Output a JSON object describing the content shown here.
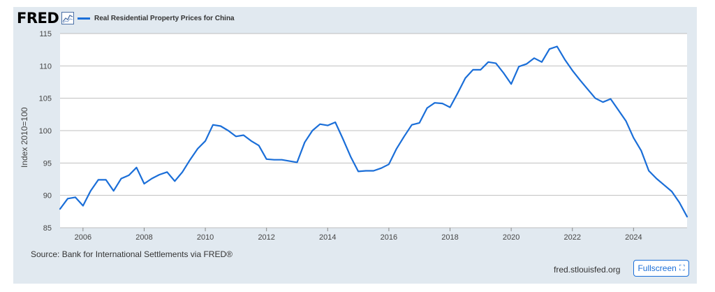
{
  "header": {
    "logo_text": "FRED",
    "logo_graph_icon": "line-graph-icon"
  },
  "chart_data": {
    "type": "line",
    "title": "",
    "xlabel": "",
    "ylabel": "Index 2010=100",
    "ylim": [
      85,
      115
    ],
    "xlim": [
      2005.25,
      2025.75
    ],
    "grid": true,
    "legend_position": "top-left",
    "y_ticks": [
      "85",
      "90",
      "95",
      "100",
      "105",
      "110",
      "115"
    ],
    "x_ticks": [
      "2006",
      "2008",
      "2010",
      "2012",
      "2014",
      "2016",
      "2018",
      "2020",
      "2022",
      "2024"
    ],
    "series": [
      {
        "name": "Real Residential Property Prices for China",
        "color": "#1a6ed8",
        "points": [
          [
            2005.25,
            87.9
          ],
          [
            2005.5,
            89.5
          ],
          [
            2005.75,
            89.7
          ],
          [
            2006.0,
            88.4
          ],
          [
            2006.25,
            90.7
          ],
          [
            2006.5,
            92.4
          ],
          [
            2006.75,
            92.4
          ],
          [
            2007.0,
            90.7
          ],
          [
            2007.25,
            92.6
          ],
          [
            2007.5,
            93.1
          ],
          [
            2007.75,
            94.3
          ],
          [
            2008.0,
            91.8
          ],
          [
            2008.25,
            92.6
          ],
          [
            2008.5,
            93.2
          ],
          [
            2008.75,
            93.6
          ],
          [
            2009.0,
            92.2
          ],
          [
            2009.25,
            93.6
          ],
          [
            2009.5,
            95.5
          ],
          [
            2009.75,
            97.2
          ],
          [
            2010.0,
            98.4
          ],
          [
            2010.25,
            100.9
          ],
          [
            2010.5,
            100.7
          ],
          [
            2010.75,
            100.0
          ],
          [
            2011.0,
            99.1
          ],
          [
            2011.25,
            99.3
          ],
          [
            2011.5,
            98.4
          ],
          [
            2011.75,
            97.7
          ],
          [
            2012.0,
            95.6
          ],
          [
            2012.25,
            95.5
          ],
          [
            2012.5,
            95.5
          ],
          [
            2012.75,
            95.3
          ],
          [
            2013.0,
            95.1
          ],
          [
            2013.25,
            98.2
          ],
          [
            2013.5,
            100.0
          ],
          [
            2013.75,
            101.0
          ],
          [
            2014.0,
            100.8
          ],
          [
            2014.25,
            101.3
          ],
          [
            2014.5,
            98.7
          ],
          [
            2014.75,
            96.0
          ],
          [
            2015.0,
            93.7
          ],
          [
            2015.25,
            93.8
          ],
          [
            2015.5,
            93.8
          ],
          [
            2015.75,
            94.2
          ],
          [
            2016.0,
            94.8
          ],
          [
            2016.25,
            97.2
          ],
          [
            2016.5,
            99.1
          ],
          [
            2016.75,
            100.9
          ],
          [
            2017.0,
            101.2
          ],
          [
            2017.25,
            103.5
          ],
          [
            2017.5,
            104.3
          ],
          [
            2017.75,
            104.2
          ],
          [
            2018.0,
            103.6
          ],
          [
            2018.25,
            105.8
          ],
          [
            2018.5,
            108.1
          ],
          [
            2018.75,
            109.4
          ],
          [
            2019.0,
            109.4
          ],
          [
            2019.25,
            110.6
          ],
          [
            2019.5,
            110.4
          ],
          [
            2019.75,
            108.9
          ],
          [
            2020.0,
            107.2
          ],
          [
            2020.25,
            109.9
          ],
          [
            2020.5,
            110.3
          ],
          [
            2020.75,
            111.2
          ],
          [
            2021.0,
            110.6
          ],
          [
            2021.25,
            112.6
          ],
          [
            2021.5,
            113.0
          ],
          [
            2021.75,
            111.0
          ],
          [
            2022.0,
            109.3
          ],
          [
            2022.25,
            107.8
          ],
          [
            2022.5,
            106.4
          ],
          [
            2022.75,
            105.0
          ],
          [
            2023.0,
            104.4
          ],
          [
            2023.25,
            104.9
          ],
          [
            2023.5,
            103.2
          ],
          [
            2023.75,
            101.5
          ],
          [
            2024.0,
            98.9
          ],
          [
            2024.25,
            96.9
          ],
          [
            2024.5,
            93.8
          ],
          [
            2024.75,
            92.6
          ],
          [
            2025.0,
            91.6
          ],
          [
            2025.25,
            90.6
          ],
          [
            2025.5,
            88.9
          ],
          [
            2025.75,
            86.7
          ]
        ]
      }
    ]
  },
  "footer": {
    "source": "Source: Bank for International Settlements via FRED®",
    "site": "fred.stlouisfed.org",
    "fullscreen_label": "Fullscreen",
    "fullscreen_icon": "expand-icon"
  }
}
